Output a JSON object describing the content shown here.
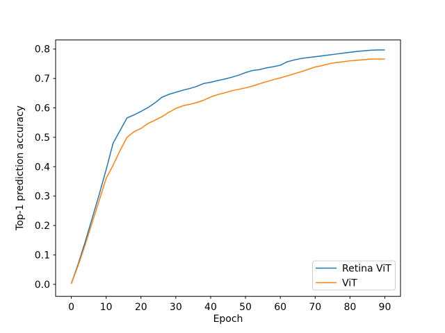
{
  "figure": {
    "background": "#ffffff",
    "text_color": "#000000",
    "spine_color": "#000000",
    "legend_border_color": "#cccccc"
  },
  "chart_data": {
    "type": "line",
    "title": "",
    "xlabel": "Epoch",
    "ylabel": "Top-1 prediction accuracy",
    "grid": false,
    "legend_position": "lower right",
    "xlim": [
      -4.5,
      94.5
    ],
    "ylim": [
      -0.041,
      0.831
    ],
    "x_ticks": [
      0,
      10,
      20,
      30,
      40,
      50,
      60,
      70,
      80,
      90
    ],
    "y_ticks": [
      0.0,
      0.1,
      0.2,
      0.3,
      0.4,
      0.5,
      0.6,
      0.7,
      0.8
    ],
    "x": [
      0,
      2,
      4,
      6,
      8,
      10,
      12,
      14,
      16,
      18,
      20,
      22,
      24,
      26,
      28,
      30,
      32,
      34,
      36,
      38,
      40,
      42,
      44,
      46,
      48,
      50,
      52,
      54,
      56,
      58,
      60,
      62,
      64,
      66,
      68,
      70,
      72,
      74,
      76,
      78,
      80,
      82,
      84,
      86,
      88,
      90
    ],
    "series": [
      {
        "name": "Retina ViT",
        "color": "#1f77b4",
        "values": [
          0.002,
          0.07,
          0.145,
          0.225,
          0.305,
          0.39,
          0.48,
          0.523,
          0.566,
          0.576,
          0.588,
          0.601,
          0.617,
          0.636,
          0.646,
          0.653,
          0.66,
          0.666,
          0.673,
          0.683,
          0.687,
          0.693,
          0.698,
          0.704,
          0.711,
          0.72,
          0.727,
          0.73,
          0.736,
          0.74,
          0.745,
          0.757,
          0.763,
          0.768,
          0.771,
          0.774,
          0.777,
          0.78,
          0.783,
          0.786,
          0.789,
          0.792,
          0.794,
          0.796,
          0.797,
          0.797
        ]
      },
      {
        "name": "ViT",
        "color": "#ff7f0e",
        "values": [
          0.002,
          0.065,
          0.135,
          0.21,
          0.285,
          0.36,
          0.405,
          0.455,
          0.5,
          0.519,
          0.53,
          0.547,
          0.558,
          0.57,
          0.585,
          0.598,
          0.607,
          0.612,
          0.618,
          0.626,
          0.637,
          0.645,
          0.651,
          0.658,
          0.663,
          0.668,
          0.674,
          0.682,
          0.689,
          0.696,
          0.702,
          0.709,
          0.716,
          0.723,
          0.731,
          0.739,
          0.744,
          0.75,
          0.754,
          0.757,
          0.76,
          0.762,
          0.764,
          0.766,
          0.766,
          0.766
        ]
      }
    ]
  }
}
